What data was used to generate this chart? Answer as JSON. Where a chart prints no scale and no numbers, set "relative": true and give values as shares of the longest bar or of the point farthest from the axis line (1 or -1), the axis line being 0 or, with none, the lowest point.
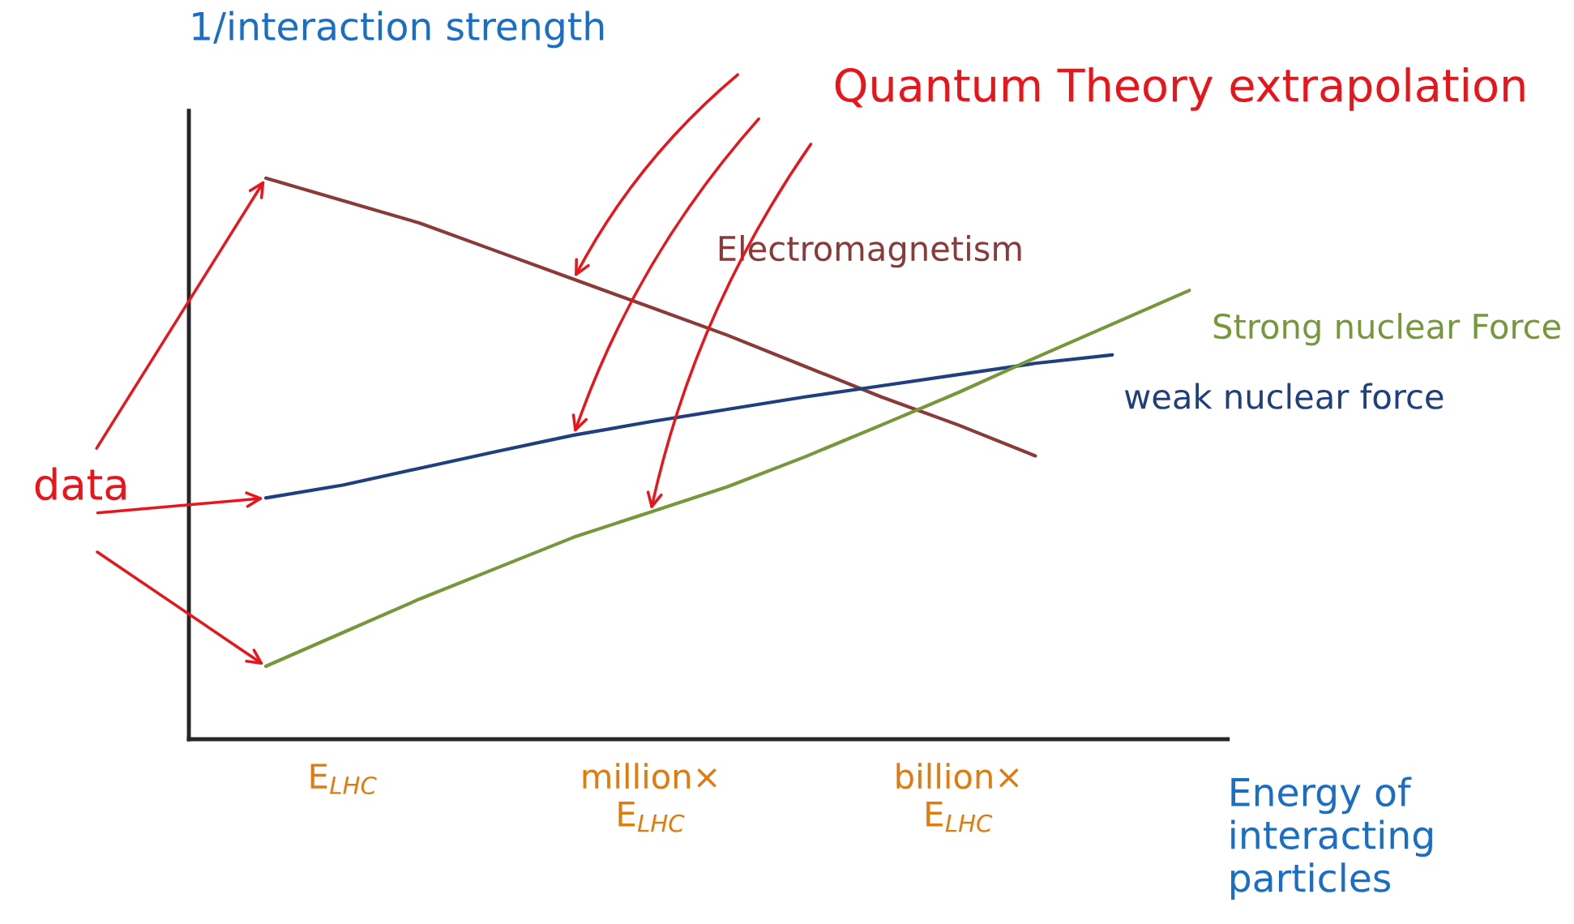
{
  "chart_data": {
    "type": "line",
    "relative": true,
    "ylabel": "1/interaction strength",
    "xlabel": "Energy of interacting particles",
    "categories": [
      null,
      "E$_{LHC}$",
      null,
      null,
      null,
      "million×\nE$_{LHC}$",
      null,
      null,
      null,
      "billion×\nE$_{LHC}$",
      null,
      null,
      null
    ],
    "annotations": [
      "Quantum Theory extrapolation",
      "data"
    ],
    "legend": false,
    "grid": false,
    "marker": "none",
    "line_style": "solid",
    "series": [
      {
        "name": "Electromagnetism",
        "color": "#8b3a3a",
        "values": [
          1.0,
          0.96,
          0.92,
          0.87,
          0.82,
          0.77,
          0.72,
          0.665,
          0.61,
          0.56,
          0.505,
          null,
          null
        ]
      },
      {
        "name": "weak nuclear force",
        "color": "#1f3f7f",
        "values": [
          0.43,
          0.453,
          0.483,
          0.513,
          0.542,
          0.566,
          0.588,
          0.61,
          0.63,
          0.65,
          0.67,
          0.685,
          null
        ]
      },
      {
        "name": "Strong nuclear Force",
        "color": "#76983a",
        "values": [
          0.13,
          0.19,
          0.25,
          0.305,
          0.36,
          0.405,
          0.45,
          0.503,
          0.56,
          0.618,
          0.68,
          0.74,
          0.8
        ]
      }
    ]
  }
}
